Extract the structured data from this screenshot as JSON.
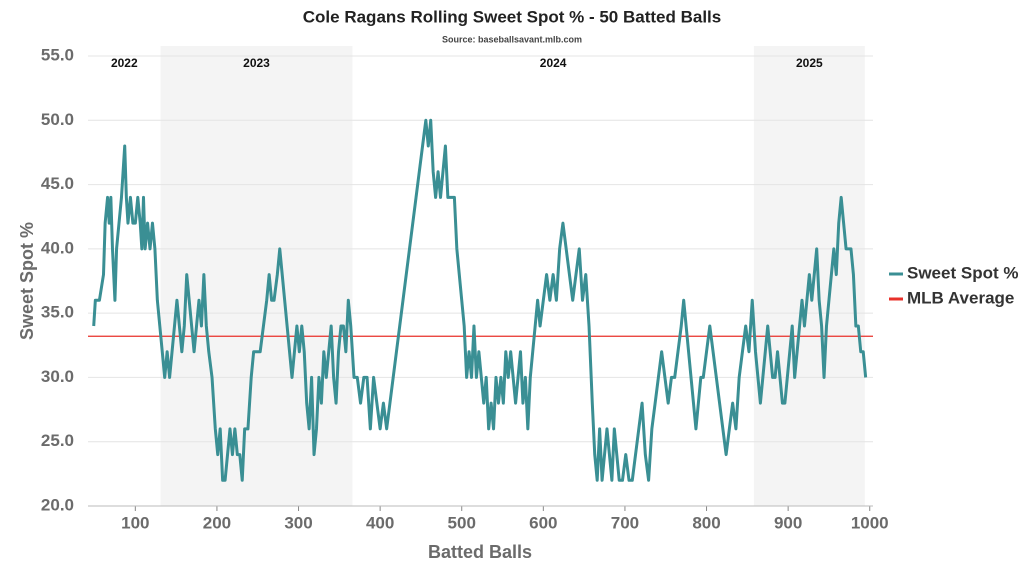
{
  "chart_data": {
    "type": "line",
    "title": "Cole Ragans Rolling Sweet Spot % - 50 Batted Balls",
    "subtitle": "Source: baseballsavant.mlb.com",
    "x_label": "Batted Balls",
    "y_label": "Sweet Spot %",
    "xlim": [
      42,
      1004
    ],
    "ylim": [
      20,
      55
    ],
    "xticks": [
      100,
      200,
      300,
      400,
      500,
      600,
      700,
      800,
      900,
      1000
    ],
    "yticks": [
      {
        "value": 20,
        "label": "20.0"
      },
      {
        "value": 25,
        "label": "25.0"
      },
      {
        "value": 30,
        "label": "30.0"
      },
      {
        "value": 35,
        "label": "35.0"
      },
      {
        "value": 40,
        "label": "40.0"
      },
      {
        "value": 45,
        "label": "45.0"
      },
      {
        "value": 50,
        "label": "50.0"
      },
      {
        "value": 55,
        "label": "55.0"
      }
    ],
    "grid": true,
    "periods": [
      {
        "label": "2022",
        "start": 42,
        "end": 131,
        "shaded": false
      },
      {
        "label": "2023",
        "start": 131,
        "end": 366,
        "shaded": true
      },
      {
        "label": "2024",
        "start": 366,
        "end": 858,
        "shaded": false
      },
      {
        "label": "2025",
        "start": 858,
        "end": 994,
        "shaded": true
      }
    ],
    "x": [
      49,
      51,
      56,
      61,
      63,
      66,
      68,
      70,
      72,
      75,
      77,
      80,
      83,
      85,
      87,
      89,
      91,
      94,
      97,
      100,
      103,
      106,
      108,
      110,
      112,
      115,
      118,
      121,
      124,
      127,
      130,
      133,
      136,
      139,
      142,
      145,
      148,
      151,
      154,
      157,
      160,
      163,
      166,
      169,
      172,
      175,
      178,
      181,
      184,
      187,
      190,
      194,
      198,
      201,
      204,
      207,
      210,
      213,
      216,
      219,
      222,
      225,
      228,
      231,
      234,
      238,
      242,
      245,
      249,
      253,
      257,
      261,
      264,
      267,
      270,
      274,
      277,
      280,
      283,
      286,
      289,
      292,
      295,
      298,
      301,
      304,
      307,
      310,
      313,
      316,
      319,
      322,
      325,
      328,
      331,
      334,
      337,
      340,
      343,
      346,
      349,
      352,
      355,
      358,
      361,
      364,
      368,
      372,
      376,
      380,
      384,
      388,
      392,
      396,
      400,
      404,
      408,
      412,
      416,
      420,
      424,
      428,
      432,
      436,
      440,
      444,
      448,
      452,
      456,
      459,
      462,
      465,
      468,
      471,
      474,
      477,
      480,
      483,
      487,
      491,
      494,
      497,
      500,
      503,
      506,
      509,
      512,
      515,
      518,
      521,
      524,
      527,
      530,
      533,
      536,
      539,
      542,
      545,
      548,
      551,
      554,
      557,
      560,
      563,
      566,
      569,
      572,
      575,
      578,
      581,
      584,
      587,
      590,
      593,
      596,
      600,
      604,
      608,
      612,
      616,
      620,
      624,
      628,
      632,
      636,
      640,
      644,
      648,
      652,
      656,
      660,
      663,
      666,
      669,
      672,
      675,
      678,
      681,
      684,
      687,
      690,
      693,
      697,
      701,
      705,
      709,
      713,
      717,
      721,
      725,
      729,
      733,
      737,
      741,
      745,
      749,
      753,
      757,
      761,
      765,
      769,
      772,
      775,
      778,
      781,
      784,
      787,
      790,
      793,
      796,
      800,
      804,
      808,
      812,
      816,
      820,
      824,
      828,
      832,
      836,
      840,
      844,
      848,
      852,
      856,
      860,
      863,
      866,
      869,
      872,
      875,
      878,
      881,
      884,
      887,
      890,
      893,
      896,
      899,
      902,
      905,
      908,
      911,
      914,
      917,
      920,
      923,
      926,
      929,
      932,
      935,
      938,
      941,
      944,
      947,
      950,
      953,
      956,
      959,
      962,
      965,
      968,
      971,
      974,
      977,
      980,
      983,
      986,
      989,
      992,
      995
    ],
    "series": [
      {
        "name": "Sweet Spot %",
        "color": "#3a8f94",
        "values": [
          34,
          36,
          36,
          38,
          42,
          44,
          42,
          44,
          40,
          36,
          40,
          42,
          44,
          46,
          48,
          44,
          42,
          44,
          42,
          42,
          44,
          42,
          40,
          44,
          40,
          42,
          40,
          42,
          40,
          36,
          34,
          32,
          30,
          32,
          30,
          32,
          34,
          36,
          34,
          32,
          34,
          38,
          36,
          34,
          32,
          34,
          36,
          34,
          38,
          34,
          32,
          30,
          26,
          24,
          26,
          22,
          22,
          24,
          26,
          24,
          26,
          24,
          24,
          22,
          26,
          26,
          30,
          32,
          32,
          32,
          34,
          36,
          38,
          36,
          36,
          38,
          40,
          38,
          36,
          34,
          32,
          30,
          32,
          34,
          32,
          34,
          32,
          28,
          26,
          30,
          24,
          26,
          30,
          28,
          32,
          30,
          32,
          34,
          30,
          28,
          32,
          34,
          34,
          32,
          36,
          34,
          30,
          30,
          28,
          30,
          30,
          26,
          30,
          28,
          26,
          28,
          26,
          28,
          30,
          32,
          34,
          36,
          38,
          40,
          42,
          44,
          46,
          48,
          50,
          48,
          50,
          46,
          44,
          46,
          44,
          46,
          48,
          44,
          44,
          44,
          40,
          38,
          36,
          34,
          30,
          32,
          30,
          34,
          30,
          32,
          30,
          28,
          30,
          26,
          28,
          26,
          30,
          28,
          30,
          28,
          32,
          30,
          32,
          30,
          28,
          30,
          32,
          28,
          30,
          26,
          30,
          32,
          34,
          36,
          34,
          36,
          38,
          36,
          38,
          36,
          40,
          42,
          40,
          38,
          36,
          38,
          40,
          36,
          38,
          34,
          28,
          24,
          22,
          26,
          22,
          24,
          26,
          24,
          22,
          26,
          24,
          22,
          22,
          24,
          22,
          22,
          24,
          26,
          28,
          24,
          22,
          26,
          28,
          30,
          32,
          30,
          28,
          30,
          30,
          32,
          34,
          36,
          34,
          32,
          30,
          28,
          26,
          28,
          30,
          30,
          32,
          34,
          32,
          30,
          28,
          26,
          24,
          26,
          28,
          26,
          30,
          32,
          34,
          32,
          36,
          32,
          30,
          28,
          30,
          32,
          34,
          32,
          30,
          30,
          32,
          30,
          28,
          28,
          30,
          32,
          34,
          30,
          32,
          34,
          36,
          34,
          36,
          38,
          36,
          38,
          40,
          36,
          34,
          30,
          34,
          36,
          38,
          40,
          38,
          42,
          44,
          42,
          40,
          40,
          40,
          38,
          34,
          34,
          32,
          32,
          30
        ]
      }
    ],
    "reference_lines": [
      {
        "name": "MLB Average",
        "value": 33.2,
        "color": "#e8302a"
      }
    ],
    "legend": "right"
  }
}
